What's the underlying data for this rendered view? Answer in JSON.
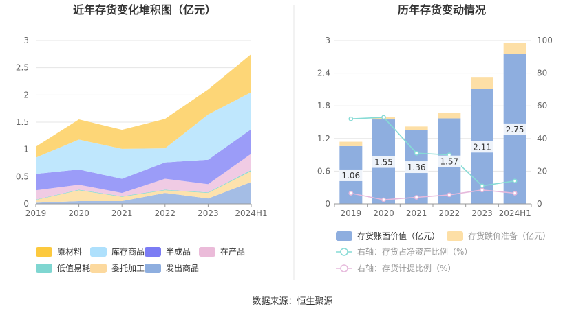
{
  "source": "数据来源：恒生聚源",
  "chart_data": [
    {
      "type": "area",
      "stacked": true,
      "title": "近年存货变化堆积图（亿元）",
      "categories": [
        "2019",
        "2020",
        "2021",
        "2022",
        "2023",
        "2024H1"
      ],
      "y_ticks": [
        "0",
        "0.5",
        "1",
        "1.5",
        "2",
        "2.5",
        "3"
      ],
      "ylim": [
        0,
        3
      ],
      "grid": true,
      "legend_position": "bottom",
      "series": [
        {
          "name": "发出商品",
          "color": "#a4bde5",
          "values": [
            0.02,
            0.05,
            0.05,
            0.2,
            0.1,
            0.4
          ]
        },
        {
          "name": "委托加工材料",
          "color": "#fde2ad",
          "values": [
            0.05,
            0.2,
            0.08,
            0.05,
            0.1,
            0.2
          ]
        },
        {
          "name": "低值易耗品",
          "color": "#8cd9d2",
          "values": [
            0.01,
            0.01,
            0.01,
            0.01,
            0.01,
            0.02
          ]
        },
        {
          "name": "在产品",
          "color": "#f0cbe4",
          "values": [
            0.17,
            0.09,
            0.06,
            0.2,
            0.15,
            0.3
          ]
        },
        {
          "name": "半成品",
          "color": "#9b9cf8",
          "values": [
            0.3,
            0.28,
            0.26,
            0.3,
            0.45,
            0.45
          ]
        },
        {
          "name": "库存商品",
          "color": "#bfe7fd",
          "values": [
            0.3,
            0.55,
            0.55,
            0.26,
            0.83,
            0.68
          ]
        },
        {
          "name": "原材料",
          "color": "#fdd677",
          "values": [
            0.2,
            0.37,
            0.35,
            0.54,
            0.46,
            0.7
          ]
        }
      ],
      "legend": [
        {
          "name": "原材料",
          "color": "#fcc93e"
        },
        {
          "name": "库存商品",
          "color": "#aee0fc"
        },
        {
          "name": "半成品",
          "color": "#7b7cf4"
        },
        {
          "name": "在产品",
          "color": "#ebbbd9"
        },
        {
          "name": "低值易耗品",
          "color": "#7fd6d1"
        },
        {
          "name": "委托加工材料",
          "color": "#fcd99e"
        },
        {
          "name": "发出商品",
          "color": "#8eaedf"
        }
      ]
    },
    {
      "type": "bar",
      "stacked": true,
      "title": "历年存货变动情况",
      "categories": [
        "2019",
        "2020",
        "2021",
        "2022",
        "2023",
        "2024H1"
      ],
      "y_ticks": [
        "0",
        "0.6",
        "1.2",
        "1.8",
        "2.4",
        "3"
      ],
      "ylim": [
        0,
        3
      ],
      "y2_ticks": [
        "0",
        "20",
        "40",
        "60",
        "80",
        "100"
      ],
      "y2lim": [
        0,
        100
      ],
      "grid": true,
      "legend_position": "bottom",
      "series": [
        {
          "name": "存货账面价值（亿元）",
          "color": "#8eaedf",
          "values": [
            1.06,
            1.55,
            1.36,
            1.57,
            2.11,
            2.75
          ],
          "labels": [
            "1.06",
            "1.55",
            "1.36",
            "1.57",
            "2.11",
            "2.75"
          ]
        },
        {
          "name": "存货跌价准备（亿元）",
          "color": "#fddfa6",
          "values": [
            0.08,
            0.04,
            0.06,
            0.1,
            0.22,
            0.2
          ]
        }
      ],
      "lines": [
        {
          "name": "右轴：存货占净资产比例（%）",
          "color": "#86dbd5",
          "axis": "right",
          "values": [
            52,
            53,
            31,
            30,
            11,
            14
          ]
        },
        {
          "name": "右轴：存货计提比例（%）",
          "color": "#e6b9dc",
          "axis": "right",
          "values": [
            6.5,
            2.5,
            4,
            5.5,
            8.5,
            6.5
          ]
        }
      ]
    }
  ]
}
